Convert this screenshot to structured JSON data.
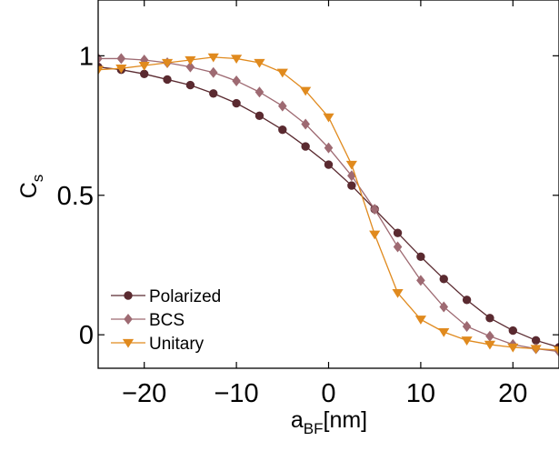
{
  "chart_data": {
    "type": "line",
    "xlabel": "a",
    "xlabel_subscript": "BF",
    "xlabel_unit": "[nm]",
    "ylabel": "C",
    "ylabel_subscript": "s",
    "xlim": [
      -25,
      25
    ],
    "ylim": [
      -0.12,
      1.2
    ],
    "xticks": [
      -20,
      -10,
      0,
      10,
      20
    ],
    "xtick_labels": [
      "−20",
      "−10",
      "0",
      "10",
      "20"
    ],
    "yticks": [
      0,
      0.5,
      1
    ],
    "ytick_labels": [
      "0",
      "0.5",
      "1"
    ],
    "grid": false,
    "legend_position": "bottom-left",
    "series": [
      {
        "name": "Polarized",
        "color": "#5a2a30",
        "marker": "circle",
        "x": [
          -25,
          -22.5,
          -20,
          -17.5,
          -15,
          -12.5,
          -10,
          -7.5,
          -5,
          -2.5,
          0,
          2.5,
          5,
          7.5,
          10,
          12.5,
          15,
          17.5,
          20,
          22.5,
          25
        ],
        "y": [
          0.96,
          0.95,
          0.935,
          0.915,
          0.895,
          0.865,
          0.83,
          0.785,
          0.735,
          0.675,
          0.61,
          0.535,
          0.45,
          0.365,
          0.28,
          0.2,
          0.125,
          0.06,
          0.015,
          -0.02,
          -0.045
        ]
      },
      {
        "name": "BCS",
        "color": "#9e6a72",
        "marker": "diamond",
        "x": [
          -25,
          -22.5,
          -20,
          -17.5,
          -15,
          -12.5,
          -10,
          -7.5,
          -5,
          -2.5,
          0,
          2.5,
          5,
          7.5,
          10,
          12.5,
          15,
          17.5,
          20,
          22.5,
          25
        ],
        "y": [
          0.99,
          0.99,
          0.985,
          0.975,
          0.96,
          0.94,
          0.91,
          0.87,
          0.82,
          0.755,
          0.67,
          0.57,
          0.45,
          0.315,
          0.195,
          0.1,
          0.03,
          -0.005,
          -0.035,
          -0.05,
          -0.06
        ]
      },
      {
        "name": "Unitary",
        "color": "#e08a1e",
        "marker": "triangle-down",
        "x": [
          -25,
          -22.5,
          -20,
          -17.5,
          -15,
          -12.5,
          -10,
          -7.5,
          -5,
          -2.5,
          0,
          2.5,
          5,
          7.5,
          10,
          12.5,
          15,
          17.5,
          20,
          22.5,
          25
        ],
        "y": [
          0.95,
          0.955,
          0.965,
          0.975,
          0.985,
          0.995,
          0.99,
          0.975,
          0.94,
          0.875,
          0.78,
          0.61,
          0.36,
          0.15,
          0.055,
          0.01,
          -0.02,
          -0.035,
          -0.045,
          -0.05,
          -0.055
        ]
      }
    ]
  }
}
